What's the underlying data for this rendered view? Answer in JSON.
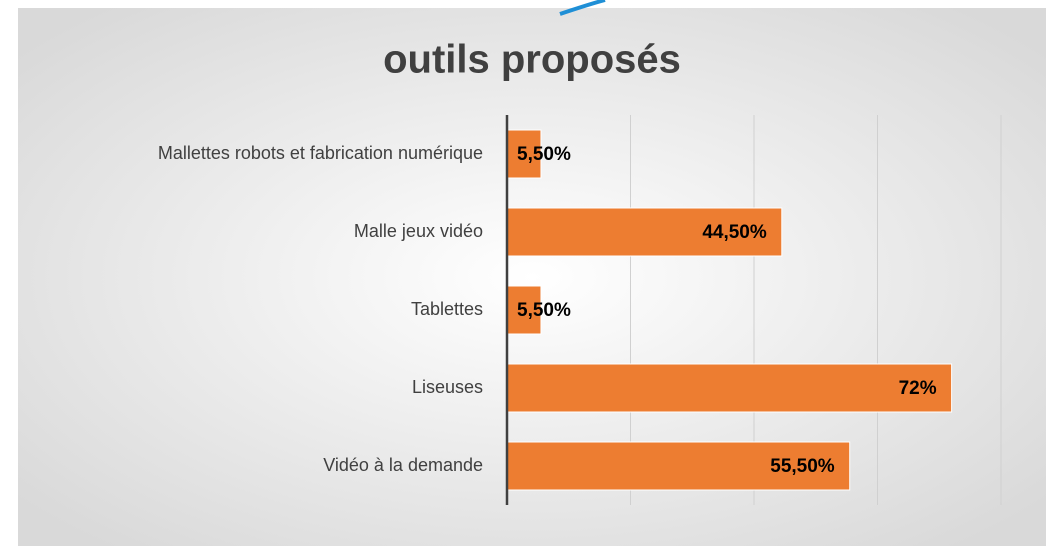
{
  "chart_data": {
    "type": "bar",
    "orientation": "horizontal",
    "title": "outils proposés",
    "categories": [
      "Mallettes robots et fabrication numérique",
      "Malle jeux vidéo",
      "Tablettes",
      "Liseuses",
      "Vidéo à la demande"
    ],
    "values": [
      5.5,
      44.5,
      5.5,
      72,
      55.5
    ],
    "value_labels": [
      "5,50%",
      "44,50%",
      "5,50%",
      "72%",
      "55,50%"
    ],
    "color": "#ed7d31",
    "xlim": [
      0,
      80
    ],
    "xticks": [
      0,
      20,
      40,
      60,
      80
    ],
    "grid": true
  }
}
